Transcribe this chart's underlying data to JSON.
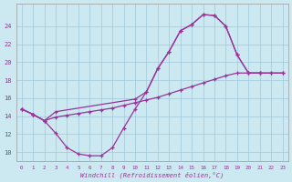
{
  "bg_color": "#cce8f0",
  "grid_color": "#a0c8d8",
  "line_color": "#993399",
  "xlabel": "Windchill (Refroidissement éolien,°C)",
  "x_ticks": [
    0,
    1,
    2,
    3,
    4,
    5,
    6,
    7,
    8,
    9,
    10,
    11,
    12,
    13,
    14,
    15,
    16,
    17,
    18,
    19,
    20,
    21,
    22,
    23
  ],
  "y_ticks": [
    10,
    12,
    14,
    16,
    18,
    20,
    22,
    24
  ],
  "ylim": [
    9.0,
    26.5
  ],
  "xlim": [
    -0.5,
    23.5
  ],
  "line1_x": [
    0,
    1,
    2,
    3,
    4,
    5,
    6,
    7,
    8,
    9,
    10,
    11,
    12,
    13,
    14,
    15,
    16,
    17,
    18,
    19,
    20,
    21
  ],
  "line1_y": [
    14.8,
    14.2,
    13.5,
    12.1,
    10.5,
    9.8,
    9.6,
    9.6,
    10.5,
    12.7,
    14.8,
    16.7,
    19.3,
    21.2,
    23.5,
    24.2,
    25.3,
    25.2,
    24.0,
    20.8,
    18.8,
    18.8
  ],
  "line2_x": [
    0,
    1,
    2,
    3,
    4,
    5,
    6,
    7,
    8,
    9,
    10,
    11,
    12,
    13,
    14,
    15,
    16,
    17,
    18,
    19,
    20,
    21,
    22,
    23
  ],
  "line2_y": [
    14.8,
    14.2,
    13.5,
    13.9,
    14.1,
    14.3,
    14.5,
    14.7,
    14.9,
    15.2,
    15.5,
    15.8,
    16.1,
    16.5,
    16.9,
    17.3,
    17.7,
    18.1,
    18.5,
    18.8,
    18.8,
    18.8,
    18.8,
    18.8
  ],
  "line3_x": [
    0,
    1,
    2,
    3,
    10,
    11,
    12,
    13,
    14,
    15,
    16,
    17,
    18,
    19,
    20,
    21,
    22,
    23
  ],
  "line3_y": [
    14.8,
    14.2,
    13.5,
    14.5,
    15.9,
    16.7,
    19.3,
    21.2,
    23.5,
    24.2,
    25.3,
    25.2,
    24.0,
    20.8,
    18.8,
    18.8,
    18.8,
    18.8
  ]
}
